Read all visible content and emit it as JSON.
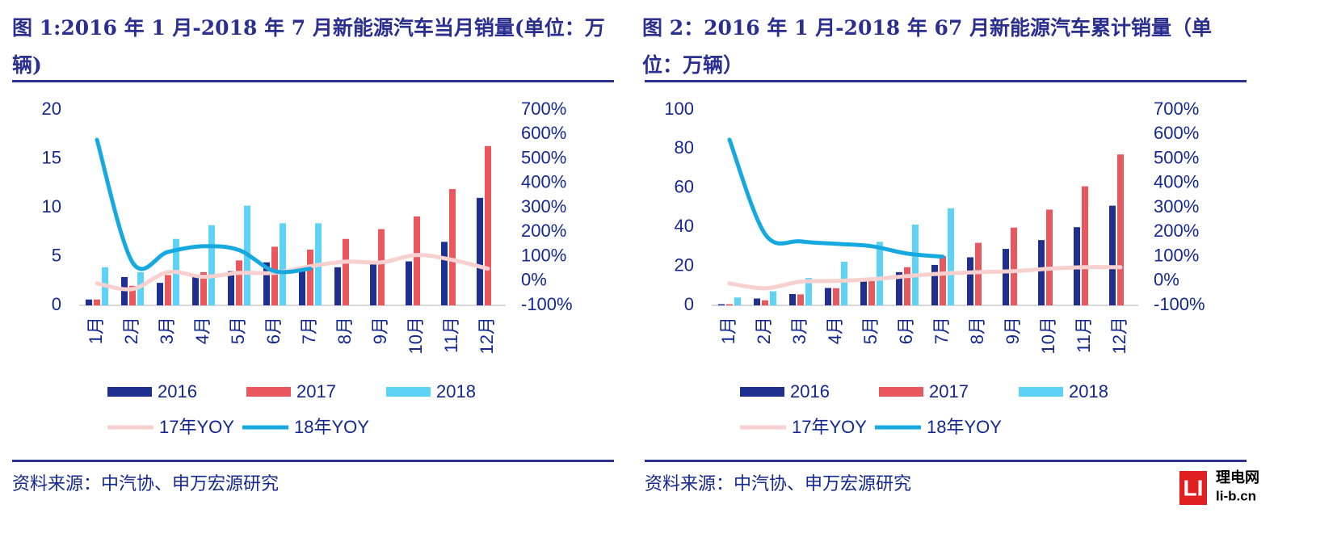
{
  "chart_data": [
    {
      "type": "bar",
      "title": "图 1:2016 年 1 月-2018 年 7 月新能源汽车当月销量(单位：万辆)",
      "source": "资料来源：中汽协、申万宏源研究",
      "categories": [
        "1月",
        "2月",
        "3月",
        "4月",
        "5月",
        "6月",
        "7月",
        "8月",
        "9月",
        "10月",
        "11月",
        "12月"
      ],
      "ylim": [
        0,
        20
      ],
      "yticks": [
        0,
        5,
        10,
        15,
        20
      ],
      "y2lim": [
        -100,
        700
      ],
      "y2ticks": [
        {
          "value": -100,
          "label": "-100%"
        },
        {
          "value": 0,
          "label": "0%"
        },
        {
          "value": 100,
          "label": "100%"
        },
        {
          "value": 200,
          "label": "200%"
        },
        {
          "value": 300,
          "label": "300%"
        },
        {
          "value": 400,
          "label": "400%"
        },
        {
          "value": 500,
          "label": "500%"
        },
        {
          "value": 600,
          "label": "600%"
        },
        {
          "value": 700,
          "label": "700%"
        }
      ],
      "series": [
        {
          "name": "2016",
          "type": "bar",
          "color": "#1f2f8f",
          "values": [
            0.6,
            2.9,
            2.3,
            3.1,
            3.5,
            4.4,
            3.6,
            3.9,
            4.3,
            4.5,
            6.5,
            11.0
          ]
        },
        {
          "name": "2017",
          "type": "bar",
          "color": "#e8585e",
          "values": [
            0.6,
            2.0,
            3.1,
            3.4,
            4.6,
            6.0,
            5.7,
            6.8,
            7.8,
            9.1,
            11.9,
            16.3
          ]
        },
        {
          "name": "2018",
          "type": "bar",
          "color": "#5fd3f5",
          "values": [
            3.9,
            3.4,
            6.8,
            8.2,
            10.2,
            8.4,
            8.4,
            null,
            null,
            null,
            null,
            null
          ]
        },
        {
          "name": "17年YOY",
          "type": "line",
          "axis": "y2",
          "color": "#f8d0d0",
          "values": [
            -10,
            -33,
            36,
            17,
            33,
            33,
            60,
            79,
            76,
            106,
            86,
            50
          ]
        },
        {
          "name": "18年YOY",
          "type": "line",
          "axis": "y2",
          "color": "#16a9e0",
          "values": [
            578,
            76,
            119,
            142,
            126,
            40,
            50,
            null,
            null,
            null,
            null,
            null
          ]
        }
      ]
    },
    {
      "type": "bar",
      "title": "图 2：2016 年 1 月-2018 年 67 月新能源汽车累计销量（单位：万辆）",
      "source": "资料来源：中汽协、申万宏源研究",
      "categories": [
        "1月",
        "2月",
        "3月",
        "4月",
        "5月",
        "6月",
        "7月",
        "8月",
        "9月",
        "10月",
        "11月",
        "12月"
      ],
      "ylim": [
        0,
        100
      ],
      "yticks": [
        0,
        20,
        40,
        60,
        80,
        100
      ],
      "y2lim": [
        -100,
        700
      ],
      "y2ticks": [
        {
          "value": -100,
          "label": "-100%"
        },
        {
          "value": 0,
          "label": "0%"
        },
        {
          "value": 100,
          "label": "100%"
        },
        {
          "value": 200,
          "label": "200%"
        },
        {
          "value": 300,
          "label": "300%"
        },
        {
          "value": 400,
          "label": "400%"
        },
        {
          "value": 500,
          "label": "500%"
        },
        {
          "value": 600,
          "label": "600%"
        },
        {
          "value": 700,
          "label": "700%"
        }
      ],
      "series": [
        {
          "name": "2016",
          "type": "bar",
          "color": "#1f2f8f",
          "values": [
            0.6,
            3.5,
            5.8,
            8.9,
            12.5,
            17,
            20.7,
            24.6,
            28.9,
            33.4,
            40,
            51
          ]
        },
        {
          "name": "2017",
          "type": "bar",
          "color": "#e8585e",
          "values": [
            0.6,
            2.6,
            5.6,
            8.8,
            13.4,
            19.5,
            25.2,
            32,
            39.8,
            49,
            60.9,
            77.2
          ]
        },
        {
          "name": "2018",
          "type": "bar",
          "color": "#5fd3f5",
          "values": [
            4,
            7.2,
            14,
            22.3,
            32.5,
            41.3,
            49.7,
            null,
            null,
            null,
            null,
            null
          ]
        },
        {
          "name": "17年YOY",
          "type": "line",
          "axis": "y2",
          "color": "#f8d0d0",
          "values": [
            -10,
            -30,
            -3,
            0,
            7,
            20,
            30,
            36,
            40,
            50,
            56,
            56
          ]
        },
        {
          "name": "18年YOY",
          "type": "line",
          "axis": "y2",
          "color": "#16a9e0",
          "values": [
            578,
            192,
            162,
            152,
            142,
            112,
            99,
            null,
            null,
            null,
            null,
            null
          ]
        }
      ]
    }
  ],
  "watermark": {
    "logo": "LI",
    "name": "理电网",
    "site": "li-b.cn"
  }
}
